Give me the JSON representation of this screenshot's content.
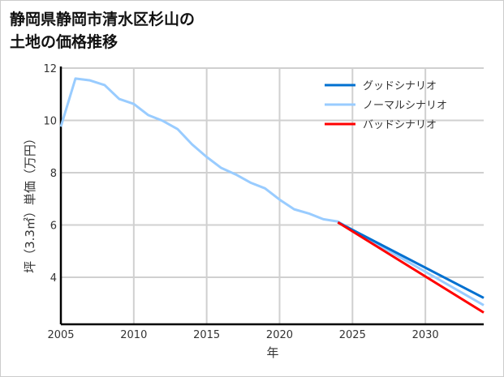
{
  "chart_data": {
    "type": "line",
    "title": [
      "静岡県静岡市清水区杉山の",
      "土地の価格推移"
    ],
    "xlabel": "年",
    "ylabel": "坪（3.3㎡）単価（万円）",
    "xlim": [
      2005,
      2034
    ],
    "ylim": [
      2.2,
      12
    ],
    "xticks": [
      2005,
      2010,
      2015,
      2020,
      2025,
      2030
    ],
    "yticks": [
      4,
      6,
      8,
      10,
      12
    ],
    "grid": true,
    "legend_position": "top-right",
    "series": [
      {
        "name": "グッドシナリオ",
        "color": "#0070d0",
        "x": [
          2024,
          2034
        ],
        "y": [
          6.1,
          3.21
        ]
      },
      {
        "name": "ノーマルシナリオ",
        "color": "#99ccff",
        "x": [
          2005,
          2006,
          2007,
          2008,
          2009,
          2010,
          2011,
          2012,
          2013,
          2014,
          2015,
          2016,
          2017,
          2018,
          2019,
          2020,
          2021,
          2022,
          2023,
          2024,
          2034
        ],
        "y": [
          9.76,
          11.6,
          11.53,
          11.35,
          10.82,
          10.63,
          10.2,
          9.98,
          9.67,
          9.08,
          8.6,
          8.18,
          7.93,
          7.62,
          7.4,
          6.97,
          6.6,
          6.44,
          6.22,
          6.13,
          2.93
        ]
      },
      {
        "name": "バッドシナリオ",
        "color": "#ff0000",
        "x": [
          2024,
          2034
        ],
        "y": [
          6.1,
          2.65
        ]
      }
    ]
  }
}
